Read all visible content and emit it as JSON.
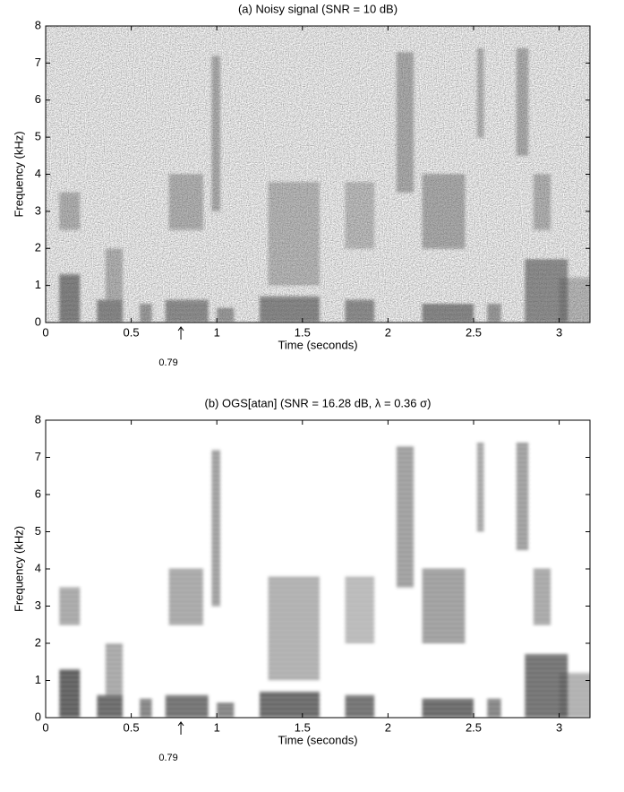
{
  "chart_data": [
    {
      "type": "spectrogram",
      "title": "(a) Noisy signal (SNR = 10 dB)",
      "xlabel": "Time (seconds)",
      "ylabel": "Frequency (kHz)",
      "xlim": [
        0,
        3.18
      ],
      "ylim": [
        0,
        8
      ],
      "xticks": [
        0,
        0.5,
        1,
        1.5,
        2,
        2.5,
        3
      ],
      "yticks": [
        0,
        1,
        2,
        3,
        4,
        5,
        6,
        7,
        8
      ],
      "noisy": true,
      "marker": 0.79
    },
    {
      "type": "spectrogram",
      "title": "(b) OGS[atan] (SNR = 16.28 dB, λ = 0.36 σ)",
      "xlabel": "Time (seconds)",
      "ylabel": "Frequency (kHz)",
      "xlim": [
        0,
        3.18
      ],
      "ylim": [
        0,
        8
      ],
      "xticks": [
        0,
        0.5,
        1,
        1.5,
        2,
        2.5,
        3
      ],
      "yticks": [
        0,
        1,
        2,
        3,
        4,
        5,
        6,
        7,
        8
      ],
      "noisy": false,
      "marker": 0.79
    }
  ]
}
